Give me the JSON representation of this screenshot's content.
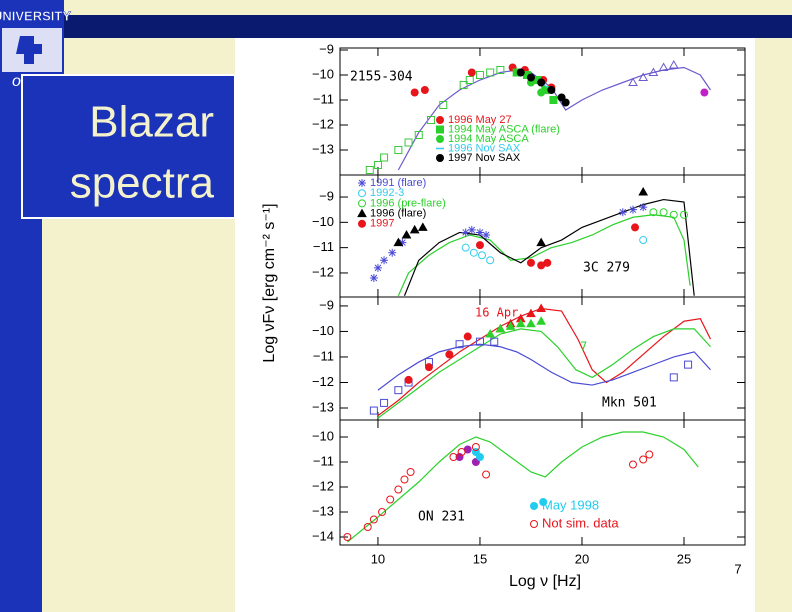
{
  "slide": {
    "title": "Blazar spectra",
    "page_number": "7",
    "logo": [
      "UNIVERSITY",
      "of"
    ]
  },
  "chart_data": [
    {
      "type": "line",
      "label": "2155-304",
      "xlim": [
        8.14,
        27.99
      ],
      "ylim": [
        -14,
        -8.92
      ],
      "yticks": [
        {
          "value": -9,
          "label": "−9"
        },
        {
          "value": -10,
          "label": "−10"
        },
        {
          "value": -11,
          "label": "−11"
        },
        {
          "value": -12,
          "label": "−12"
        },
        {
          "value": -13,
          "label": "−13"
        }
      ],
      "series": [
        {
          "type": "line",
          "color": "#6a5acd",
          "x": [
            11,
            12,
            13,
            14,
            15,
            16,
            16.8,
            17.5,
            18.5,
            19.2,
            20,
            21,
            22,
            23,
            24,
            25,
            25.8,
            26.3
          ],
          "values": [
            -13.8,
            -12.3,
            -11.2,
            -10.6,
            -10.2,
            -9.9,
            -9.8,
            -9.9,
            -10.5,
            -11.4,
            -11.0,
            -10.6,
            -10.3,
            -10.0,
            -9.8,
            -9.7,
            -10.0,
            -10.6
          ]
        },
        {
          "type": "scatter",
          "marker": "square",
          "filled": false,
          "color": "#3cc83c",
          "x": [
            9.6,
            10,
            10.3,
            11,
            11.5,
            12,
            12.6,
            13.2,
            14.2,
            14.5,
            15,
            15.5,
            16
          ],
          "values": [
            -13.8,
            -13.6,
            -13.3,
            -13.0,
            -12.7,
            -12.4,
            -11.8,
            -11.2,
            -10.4,
            -10.2,
            -10.0,
            -9.9,
            -9.8
          ]
        },
        {
          "type": "scatter",
          "marker": "triangle",
          "filled": false,
          "color": "#6a5acd",
          "x": [
            22.5,
            23,
            23.5,
            24,
            24.5
          ],
          "values": [
            -10.3,
            -10.1,
            -9.9,
            -9.7,
            -9.6
          ]
        },
        {
          "type": "scatter",
          "marker": "circle",
          "filled": true,
          "color": "#c020c8",
          "x": [
            26
          ],
          "values": [
            -10.7
          ]
        },
        {
          "name": "1996 May 27",
          "type": "scatter",
          "marker": "circle",
          "filled": true,
          "color": "#e8151b",
          "x": [
            11.8,
            12.3,
            14.6,
            16.6,
            17.2,
            18.1,
            18.5
          ],
          "values": [
            -10.7,
            -10.6,
            -9.9,
            -9.7,
            -9.8,
            -10.2,
            -10.5
          ]
        },
        {
          "name": "1994 May ASCA (flare)",
          "type": "scatter",
          "marker": "square",
          "filled": true,
          "color": "#2bd12b",
          "x": [
            16.8,
            17.3,
            17.8,
            18.2,
            18.6
          ],
          "values": [
            -9.9,
            -10.0,
            -10.2,
            -10.6,
            -11.0
          ]
        },
        {
          "name": "1994 May ASCA",
          "type": "scatter",
          "marker": "circle",
          "filled": true,
          "color": "#2bd12b",
          "x": [
            17.5,
            18
          ],
          "values": [
            -10.3,
            -10.7
          ]
        },
        {
          "name": "1996 Nov SAX",
          "type": "line",
          "color": "#33ccee",
          "x": [
            17.8,
            18.5
          ],
          "values": [
            -10.2,
            -10.6
          ]
        },
        {
          "name": "1997 Nov SAX",
          "type": "scatter",
          "marker": "circle",
          "filled": true,
          "color": "#000000",
          "x": [
            17,
            17.5,
            18,
            18.5,
            19,
            19.2
          ],
          "values": [
            -9.9,
            -10.1,
            -10.3,
            -10.6,
            -10.9,
            -11.1
          ]
        }
      ]
    },
    {
      "type": "line",
      "label": "3C 279",
      "xlim": [
        8.14,
        27.99
      ],
      "ylim": [
        -12.95,
        -8.13
      ],
      "yticks": [
        {
          "value": -9,
          "label": "−9"
        },
        {
          "value": -10,
          "label": "−10"
        },
        {
          "value": -11,
          "label": "−11"
        },
        {
          "value": -12,
          "label": "−12"
        }
      ],
      "series": [
        {
          "type": "line",
          "color": "#2bd12b",
          "x": [
            11,
            11.5,
            12.5,
            13.5,
            14.5,
            15.5,
            16.5,
            17.5,
            18.5,
            19.5,
            20.5,
            21.5,
            22.5,
            23.5,
            24.5,
            25,
            25.3
          ],
          "values": [
            -12.9,
            -12.0,
            -11.3,
            -10.8,
            -10.5,
            -10.7,
            -11.5,
            -11.4,
            -11.0,
            -10.8,
            -10.5,
            -10.1,
            -9.8,
            -9.7,
            -9.8,
            -10.7,
            -12.5
          ]
        },
        {
          "type": "line",
          "color": "#000000",
          "x": [
            11.3,
            12,
            13,
            14,
            15,
            16,
            17,
            18,
            19,
            20,
            21,
            22,
            23,
            24,
            25,
            25.5
          ],
          "values": [
            -12.9,
            -11.5,
            -10.8,
            -10.4,
            -10.5,
            -11.2,
            -11.6,
            -11.0,
            -10.7,
            -10.2,
            -9.9,
            -9.6,
            -9.3,
            -9.1,
            -9.2,
            -12.9
          ]
        },
        {
          "name": "1991 (flare)",
          "type": "scatter",
          "marker": "star",
          "filled": false,
          "color": "#4b4bd6",
          "x": [
            9.8,
            10,
            10.3,
            10.7,
            11.2,
            14.3,
            14.6,
            15,
            15.3,
            22,
            22.5,
            23
          ],
          "values": [
            -12.2,
            -11.8,
            -11.5,
            -11.2,
            -10.8,
            -10.4,
            -10.3,
            -10.4,
            -10.5,
            -9.6,
            -9.5,
            -9.4
          ]
        },
        {
          "name": "1992-3",
          "type": "scatter",
          "marker": "circle",
          "filled": false,
          "color": "#33ccee",
          "x": [
            14.3,
            14.7,
            15.1,
            15.5,
            23
          ],
          "values": [
            -11.0,
            -11.2,
            -11.3,
            -11.5,
            -10.7
          ]
        },
        {
          "name": "1996 (pre-flare)",
          "type": "scatter",
          "marker": "circle",
          "filled": false,
          "color": "#2bd12b",
          "x": [
            23.5,
            24,
            24.5,
            25
          ],
          "values": [
            -9.6,
            -9.6,
            -9.7,
            -9.7
          ]
        },
        {
          "name": "1996 (flare)",
          "type": "scatter",
          "marker": "triangle",
          "filled": true,
          "color": "#000000",
          "x": [
            11,
            11.4,
            11.8,
            12.2,
            18,
            23
          ],
          "values": [
            -10.8,
            -10.5,
            -10.3,
            -10.2,
            -10.8,
            -8.8
          ]
        },
        {
          "name": "1997",
          "type": "scatter",
          "marker": "circle",
          "filled": true,
          "color": "#e8151b",
          "x": [
            15,
            17.5,
            18,
            18.3,
            22.6
          ],
          "values": [
            -10.9,
            -11.6,
            -11.7,
            -11.6,
            -10.2
          ]
        }
      ]
    },
    {
      "type": "line",
      "label": "Mkn 501",
      "xlim": [
        8.14,
        27.99
      ],
      "ylim": [
        -13.47,
        -8.65
      ],
      "yticks": [
        {
          "value": -9,
          "label": "−9"
        },
        {
          "value": -10,
          "label": "−10"
        },
        {
          "value": -11,
          "label": "−11"
        },
        {
          "value": -12,
          "label": "−12"
        },
        {
          "value": -13,
          "label": "−13"
        }
      ],
      "series": [
        {
          "type": "line",
          "color": "#e8151b",
          "x": [
            10,
            11,
            12,
            13,
            14,
            15,
            16,
            17,
            18,
            19,
            19.8,
            20.5,
            21.2,
            22,
            23,
            24,
            25,
            25.8,
            26.3
          ],
          "values": [
            -13.3,
            -12.7,
            -12.0,
            -11.4,
            -10.8,
            -10.3,
            -9.8,
            -9.4,
            -9.1,
            -9.2,
            -10.3,
            -11.5,
            -12.0,
            -11.6,
            -10.9,
            -10.2,
            -9.6,
            -9.5,
            -10.3
          ]
        },
        {
          "type": "line",
          "color": "#2bd12b",
          "x": [
            10,
            11,
            12,
            13,
            14,
            15,
            16,
            17,
            18,
            18.8,
            19.7,
            20.5,
            21.5,
            22.5,
            23.5,
            24.5,
            25.5,
            26.3
          ],
          "values": [
            -13.4,
            -12.8,
            -12.2,
            -11.6,
            -11.1,
            -10.6,
            -10.1,
            -9.9,
            -10.0,
            -10.6,
            -11.5,
            -11.8,
            -11.3,
            -10.7,
            -10.2,
            -9.9,
            -9.9,
            -10.6
          ]
        },
        {
          "type": "line",
          "color": "#4b4bd6",
          "x": [
            10,
            11,
            12,
            13,
            14,
            15,
            16,
            16.8,
            17.5,
            18.5,
            19.5,
            20.5,
            21.5,
            22.5,
            23.5,
            24.5,
            25.5,
            26.3
          ],
          "values": [
            -12.3,
            -11.7,
            -11.2,
            -10.8,
            -10.6,
            -10.5,
            -10.6,
            -10.8,
            -11.1,
            -11.6,
            -12.0,
            -12.1,
            -11.9,
            -11.6,
            -11.3,
            -11.0,
            -10.8,
            -11.5
          ]
        },
        {
          "type": "scatter",
          "marker": "square",
          "filled": false,
          "color": "#4b4bd6",
          "x": [
            9.8,
            10.3,
            11,
            11.5,
            12.5,
            14,
            15,
            15.7,
            24.5,
            25.2
          ],
          "values": [
            -13.1,
            -12.8,
            -12.3,
            -12.0,
            -11.2,
            -10.5,
            -10.4,
            -10.4,
            -11.8,
            -11.3
          ]
        },
        {
          "type": "scatter",
          "marker": "circle",
          "filled": true,
          "color": "#e8151b",
          "x": [
            11.5,
            12.5,
            13.5,
            14.4
          ],
          "values": [
            -11.9,
            -11.4,
            -10.9,
            -10.2
          ]
        },
        {
          "name": "16 Apr",
          "type": "scatter",
          "marker": "triangle",
          "filled": true,
          "color": "#e8151b",
          "x": [
            16,
            16.5,
            17,
            17.5,
            18
          ],
          "values": [
            -9.9,
            -9.7,
            -9.5,
            -9.3,
            -9.1
          ]
        },
        {
          "name": "7",
          "type": "scatter",
          "marker": "triangle",
          "filled": true,
          "color": "#2bd12b",
          "x": [
            15.5,
            16,
            16.5,
            17,
            17.5,
            18
          ],
          "values": [
            -10.1,
            -9.9,
            -9.8,
            -9.7,
            -9.7,
            -9.6
          ]
        }
      ]
    },
    {
      "type": "line",
      "label": "ON 231",
      "xlim": [
        8.14,
        27.99
      ],
      "ylim": [
        -14.32,
        -9.32
      ],
      "yticks": [
        {
          "value": -10,
          "label": "−10"
        },
        {
          "value": -11,
          "label": "−11"
        },
        {
          "value": -12,
          "label": "−12"
        },
        {
          "value": -13,
          "label": "−13"
        },
        {
          "value": -14,
          "label": "−14"
        }
      ],
      "xticks": [
        10,
        15,
        20,
        25
      ],
      "x_label": "Log ν  [Hz]",
      "y_label": "Log νFν  [erg cm⁻² s⁻¹]",
      "series": [
        {
          "type": "line",
          "color": "#2bd12b",
          "x": [
            8.5,
            10,
            11,
            12,
            13,
            14,
            14.8,
            15.5,
            16.5,
            17.5,
            18.2,
            19,
            20,
            21,
            22,
            23,
            24,
            25,
            25.7
          ],
          "values": [
            -14.2,
            -13.2,
            -12.5,
            -11.8,
            -11.0,
            -10.3,
            -10.0,
            -10.2,
            -10.8,
            -11.4,
            -11.6,
            -11.0,
            -10.4,
            -10.0,
            -9.8,
            -9.8,
            -10.0,
            -10.5,
            -11.2
          ]
        },
        {
          "type": "scatter",
          "marker": "circle",
          "filled": true,
          "color": "#a020b0",
          "x": [
            14,
            14.4,
            14.8
          ],
          "values": [
            -10.8,
            -10.5,
            -11.0
          ]
        },
        {
          "name": "May 1998",
          "type": "scatter",
          "marker": "circle",
          "filled": true,
          "color": "#22ccee",
          "x": [
            14.8,
            15,
            18.1
          ],
          "values": [
            -10.6,
            -10.8,
            -12.6
          ]
        },
        {
          "name": "Not sim. data",
          "type": "scatter",
          "marker": "circle",
          "filled": false,
          "color": "#e8151b",
          "x": [
            8.5,
            9.5,
            9.8,
            10.2,
            10.6,
            11,
            11.3,
            11.6,
            13.7,
            14.1,
            14.8,
            15.3,
            22.5,
            23,
            23.3
          ],
          "values": [
            -14.0,
            -13.6,
            -13.3,
            -13.0,
            -12.5,
            -12.1,
            -11.7,
            -11.4,
            -10.8,
            -10.6,
            -10.4,
            -11.5,
            -11.1,
            -10.9,
            -10.7
          ]
        }
      ]
    }
  ]
}
